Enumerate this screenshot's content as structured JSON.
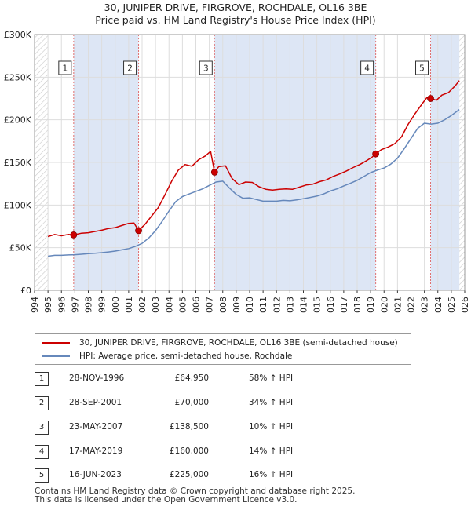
{
  "title_line1": "30, JUNIPER DRIVE, FIRGROVE, ROCHDALE, OL16 3BE",
  "title_line2": "Price paid vs. HM Land Registry's House Price Index (HPI)",
  "colors": {
    "price": "#cc0000",
    "hpi": "#6688bb",
    "shade": "#dde6f5",
    "marker": "#cc0000",
    "vline": "#e07070"
  },
  "chart_data": {
    "type": "line",
    "title": "Price paid vs. HM Land Registry's House Price Index (HPI)",
    "xlabel": "",
    "ylabel": "",
    "xlim": [
      1994,
      2026
    ],
    "ylim": [
      0,
      300000
    ],
    "yticks": [
      {
        "v": 0,
        "label": "£0"
      },
      {
        "v": 50000,
        "label": "£50K"
      },
      {
        "v": 100000,
        "label": "£100K"
      },
      {
        "v": 150000,
        "label": "£150K"
      },
      {
        "v": 200000,
        "label": "£200K"
      },
      {
        "v": 250000,
        "label": "£250K"
      },
      {
        "v": 300000,
        "label": "£300K"
      }
    ],
    "xticks": [
      "1994",
      "1995",
      "1996",
      "1997",
      "1998",
      "1999",
      "2000",
      "2001",
      "2002",
      "2003",
      "2004",
      "2005",
      "2006",
      "2007",
      "2008",
      "2009",
      "2010",
      "2011",
      "2012",
      "2013",
      "2014",
      "2015",
      "2016",
      "2017",
      "2018",
      "2019",
      "2020",
      "2021",
      "2022",
      "2023",
      "2024",
      "2025",
      "2026"
    ],
    "grid": true,
    "data_range": [
      1995.0,
      2025.6
    ],
    "shaded_periods": [
      [
        1996.91,
        2001.74
      ],
      [
        2007.39,
        2019.38
      ],
      [
        2023.46,
        2025.6
      ]
    ],
    "hatched_periods": [
      [
        1994,
        1995.0
      ],
      [
        2025.6,
        2026
      ]
    ],
    "series": [
      {
        "name": "30, JUNIPER DRIVE, FIRGROVE, ROCHDALE, OL16 3BE (semi-detached house)",
        "color": "#cc0000",
        "x": [
          1995.0,
          1995.5,
          1996.0,
          1996.5,
          1996.91,
          1997.5,
          1998.0,
          1998.5,
          1999.0,
          1999.5,
          2000.0,
          2000.5,
          2001.0,
          2001.4,
          2001.74,
          2002.2,
          2002.7,
          2003.2,
          2003.7,
          2004.2,
          2004.7,
          2005.2,
          2005.7,
          2006.2,
          2006.7,
          2007.1,
          2007.39,
          2007.7,
          2008.2,
          2008.7,
          2009.2,
          2009.7,
          2010.2,
          2010.7,
          2011.2,
          2011.7,
          2012.2,
          2012.7,
          2013.2,
          2013.7,
          2014.2,
          2014.7,
          2015.2,
          2015.7,
          2016.2,
          2016.7,
          2017.2,
          2017.7,
          2018.2,
          2018.7,
          2019.1,
          2019.38,
          2019.8,
          2020.3,
          2020.8,
          2021.3,
          2021.8,
          2022.3,
          2022.8,
          2023.2,
          2023.46,
          2023.9,
          2024.3,
          2024.8,
          2025.3,
          2025.6
        ],
        "values": [
          63000,
          65500,
          64000,
          65500,
          64950,
          67000,
          67500,
          69000,
          70500,
          72500,
          73500,
          76000,
          78500,
          79000,
          70000,
          77000,
          87000,
          97000,
          112000,
          128000,
          141000,
          147500,
          145500,
          153000,
          157500,
          163000,
          138500,
          145000,
          146000,
          131000,
          124000,
          127000,
          126500,
          121500,
          118500,
          117500,
          118500,
          119000,
          118500,
          121000,
          123500,
          124500,
          127500,
          129500,
          133500,
          136500,
          140000,
          144000,
          147500,
          152000,
          156000,
          160000,
          165000,
          168000,
          172000,
          180000,
          195000,
          207000,
          218000,
          226500,
          225000,
          223000,
          229000,
          232000,
          240000,
          246000
        ]
      },
      {
        "name": "HPI: Average price, semi-detached house, Rochdale",
        "color": "#6688bb",
        "x": [
          1995.0,
          1995.5,
          1996.0,
          1996.5,
          1997.0,
          1997.5,
          1998.0,
          1998.5,
          1999.0,
          1999.5,
          2000.0,
          2000.5,
          2001.0,
          2001.5,
          2002.0,
          2002.5,
          2003.0,
          2003.5,
          2004.0,
          2004.5,
          2005.0,
          2005.5,
          2006.0,
          2006.5,
          2007.0,
          2007.5,
          2008.0,
          2008.5,
          2009.0,
          2009.5,
          2010.0,
          2010.5,
          2011.0,
          2011.5,
          2012.0,
          2012.5,
          2013.0,
          2013.5,
          2014.0,
          2014.5,
          2015.0,
          2015.5,
          2016.0,
          2016.5,
          2017.0,
          2017.5,
          2018.0,
          2018.5,
          2019.0,
          2019.5,
          2020.0,
          2020.5,
          2021.0,
          2021.5,
          2022.0,
          2022.5,
          2023.0,
          2023.5,
          2024.0,
          2024.5,
          2025.0,
          2025.6
        ],
        "values": [
          40000,
          41000,
          41000,
          41500,
          41800,
          42300,
          43000,
          43500,
          44200,
          45000,
          46000,
          47500,
          49000,
          51500,
          55000,
          61500,
          70000,
          81000,
          93000,
          104000,
          110000,
          113000,
          116000,
          119000,
          123000,
          127000,
          128000,
          120000,
          112500,
          108000,
          108500,
          106500,
          104500,
          104500,
          104500,
          105500,
          105000,
          106000,
          107500,
          109000,
          110500,
          113000,
          116500,
          119000,
          122500,
          125500,
          129000,
          133500,
          138000,
          141000,
          143500,
          148000,
          155000,
          166000,
          178000,
          190000,
          196000,
          195000,
          196000,
          200000,
          205000,
          212000
        ]
      }
    ],
    "annotations": [
      {
        "label": "1",
        "x": 1996.91,
        "value": 64950
      },
      {
        "label": "2",
        "x": 2001.74,
        "value": 70000
      },
      {
        "label": "3",
        "x": 2007.39,
        "value": 138500
      },
      {
        "label": "4",
        "x": 2019.38,
        "value": 160000
      },
      {
        "label": "5",
        "x": 2023.46,
        "value": 225000
      }
    ]
  },
  "legend": {
    "price_label": "30, JUNIPER DRIVE, FIRGROVE, ROCHDALE, OL16 3BE (semi-detached house)",
    "hpi_label": "HPI: Average price, semi-detached house, Rochdale"
  },
  "transactions": [
    {
      "num": "1",
      "date": "28-NOV-1996",
      "price": "£64,950",
      "hpi": "58% ↑ HPI"
    },
    {
      "num": "2",
      "date": "28-SEP-2001",
      "price": "£70,000",
      "hpi": "34% ↑ HPI"
    },
    {
      "num": "3",
      "date": "23-MAY-2007",
      "price": "£138,500",
      "hpi": "10% ↑ HPI"
    },
    {
      "num": "4",
      "date": "17-MAY-2019",
      "price": "£160,000",
      "hpi": "14% ↑ HPI"
    },
    {
      "num": "5",
      "date": "16-JUN-2023",
      "price": "£225,000",
      "hpi": "16% ↑ HPI"
    }
  ],
  "footer": {
    "line1": "Contains HM Land Registry data © Crown copyright and database right 2025.",
    "line2": "This data is licensed under the Open Government Licence v3.0."
  }
}
